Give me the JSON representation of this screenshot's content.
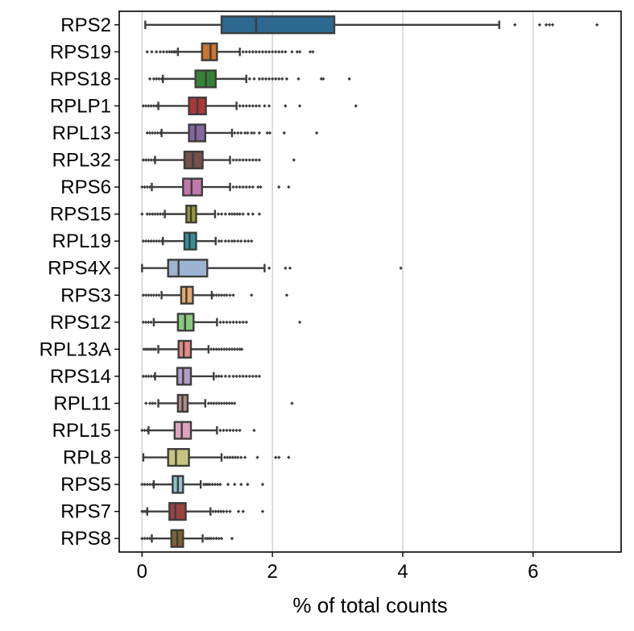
{
  "chart_data": {
    "type": "box",
    "orientation": "horizontal",
    "xlabel": "% of total counts",
    "ylabel": "",
    "xlim": [
      -0.35,
      7.35
    ],
    "xticks": [
      0,
      2,
      4,
      6
    ],
    "grid": "vertical",
    "categories": [
      "RPS2",
      "RPS19",
      "RPS18",
      "RPLP1",
      "RPL13",
      "RPL32",
      "RPS6",
      "RPS15",
      "RPL19",
      "RPS4X",
      "RPS3",
      "RPS12",
      "RPL13A",
      "RPS14",
      "RPL11",
      "RPL15",
      "RPL8",
      "RPS5",
      "RPS7",
      "RPS8"
    ],
    "boxes": [
      {
        "gene": "RPS2",
        "color": "#3274a1",
        "whislo": 0.05,
        "q1": 1.22,
        "med": 1.75,
        "q3": 2.95,
        "whishi": 5.48,
        "fliers": [
          5.72,
          6.1,
          6.2,
          6.25,
          6.3,
          6.98
        ]
      },
      {
        "gene": "RPS19",
        "color": "#e1812c",
        "whislo": 0.55,
        "q1": 0.92,
        "med": 1.05,
        "q3": 1.15,
        "whishi": 1.5,
        "fliers": [
          0.08,
          0.15,
          0.22,
          0.28,
          0.33,
          0.38,
          0.42,
          0.45,
          0.48,
          0.5,
          0.52,
          1.55,
          1.6,
          1.65,
          1.7,
          1.75,
          1.8,
          1.85,
          1.9,
          1.95,
          2.0,
          2.05,
          2.1,
          2.15,
          2.2,
          2.3,
          2.38,
          2.42,
          2.58,
          2.62
        ]
      },
      {
        "gene": "RPS18",
        "color": "#3a923a",
        "whislo": 0.32,
        "q1": 0.82,
        "med": 0.98,
        "q3": 1.13,
        "whishi": 1.6,
        "fliers": [
          0.12,
          0.18,
          0.22,
          0.26,
          0.3,
          1.65,
          1.72,
          1.8,
          1.85,
          1.9,
          1.95,
          2.0,
          2.05,
          2.1,
          2.15,
          2.22,
          2.4,
          2.75,
          2.78,
          3.18
        ]
      },
      {
        "gene": "RPLP1",
        "color": "#c03d3e",
        "whislo": 0.25,
        "q1": 0.72,
        "med": 0.85,
        "q3": 0.98,
        "whishi": 1.45,
        "fliers": [
          0.02,
          0.06,
          0.1,
          0.14,
          0.18,
          0.22,
          1.5,
          1.55,
          1.6,
          1.65,
          1.7,
          1.75,
          1.8,
          1.88,
          1.95,
          2.2,
          2.42,
          3.28
        ]
      },
      {
        "gene": "RPL13",
        "color": "#9372b2",
        "whislo": 0.3,
        "q1": 0.72,
        "med": 0.82,
        "q3": 0.97,
        "whishi": 1.38,
        "fliers": [
          0.08,
          0.12,
          0.16,
          0.2,
          0.24,
          0.28,
          1.42,
          1.47,
          1.52,
          1.58,
          1.62,
          1.68,
          1.72,
          1.8,
          1.92,
          1.96,
          2.18,
          2.68
        ]
      },
      {
        "gene": "RPL32",
        "color": "#845b53",
        "whislo": 0.2,
        "q1": 0.65,
        "med": 0.78,
        "q3": 0.93,
        "whishi": 1.35,
        "fliers": [
          0.02,
          0.06,
          0.1,
          0.14,
          0.18,
          1.4,
          1.45,
          1.5,
          1.55,
          1.6,
          1.65,
          1.7,
          1.75,
          1.8,
          2.33
        ]
      },
      {
        "gene": "RPS6",
        "color": "#d684bd",
        "whislo": 0.15,
        "q1": 0.63,
        "med": 0.76,
        "q3": 0.92,
        "whishi": 1.35,
        "fliers": [
          0.0,
          0.04,
          0.08,
          0.12,
          1.4,
          1.45,
          1.5,
          1.55,
          1.6,
          1.65,
          1.7,
          1.78,
          1.82,
          2.1,
          2.25
        ]
      },
      {
        "gene": "RPS15",
        "color": "#a9aa35",
        "whislo": 0.35,
        "q1": 0.68,
        "med": 0.75,
        "q3": 0.83,
        "whishi": 1.12,
        "fliers": [
          0.0,
          0.08,
          0.12,
          0.16,
          0.2,
          0.24,
          0.28,
          0.32,
          1.17,
          1.22,
          1.28,
          1.34,
          1.38,
          1.42,
          1.46,
          1.5,
          1.55,
          1.63,
          1.7,
          1.8
        ]
      },
      {
        "gene": "RPL19",
        "color": "#3a9fad",
        "whislo": 0.32,
        "q1": 0.65,
        "med": 0.73,
        "q3": 0.83,
        "whishi": 1.13,
        "fliers": [
          0.02,
          0.06,
          0.1,
          0.14,
          0.18,
          0.22,
          0.26,
          0.3,
          1.18,
          1.22,
          1.28,
          1.33,
          1.38,
          1.42,
          1.47,
          1.52,
          1.58,
          1.63,
          1.68
        ]
      },
      {
        "gene": "RPS4X",
        "color": "#aec7e8",
        "whislo": 0.0,
        "q1": 0.4,
        "med": 0.56,
        "q3": 1.0,
        "whishi": 1.88,
        "fliers": [
          1.95,
          2.2,
          2.27,
          3.97
        ]
      },
      {
        "gene": "RPS3",
        "color": "#ffbb78",
        "whislo": 0.3,
        "q1": 0.6,
        "med": 0.68,
        "q3": 0.78,
        "whishi": 1.07,
        "fliers": [
          0.02,
          0.06,
          0.1,
          0.14,
          0.18,
          0.22,
          0.26,
          1.1,
          1.14,
          1.18,
          1.22,
          1.26,
          1.3,
          1.35,
          1.4,
          1.68,
          2.22
        ]
      },
      {
        "gene": "RPS12",
        "color": "#98df8a",
        "whislo": 0.18,
        "q1": 0.55,
        "med": 0.66,
        "q3": 0.79,
        "whishi": 1.15,
        "fliers": [
          0.02,
          0.06,
          0.1,
          0.14,
          1.2,
          1.25,
          1.3,
          1.35,
          1.4,
          1.45,
          1.5,
          1.55,
          1.6,
          2.42
        ]
      },
      {
        "gene": "RPL13A",
        "color": "#ff9896",
        "whislo": 0.25,
        "q1": 0.56,
        "med": 0.64,
        "q3": 0.75,
        "whishi": 1.02,
        "fliers": [
          0.03,
          0.06,
          0.09,
          0.12,
          0.15,
          0.18,
          0.21,
          1.06,
          1.1,
          1.14,
          1.18,
          1.22,
          1.26,
          1.3,
          1.34,
          1.38,
          1.42,
          1.46,
          1.5,
          1.53
        ]
      },
      {
        "gene": "RPS14",
        "color": "#c5b0d5",
        "whislo": 0.2,
        "q1": 0.54,
        "med": 0.63,
        "q3": 0.75,
        "whishi": 1.1,
        "fliers": [
          0.02,
          0.06,
          0.1,
          0.14,
          0.18,
          1.14,
          1.18,
          1.22,
          1.28,
          1.34,
          1.4,
          1.45,
          1.5,
          1.55,
          1.6,
          1.65,
          1.7,
          1.75,
          1.8
        ]
      },
      {
        "gene": "RPL11",
        "color": "#c49c94",
        "whislo": 0.25,
        "q1": 0.55,
        "med": 0.62,
        "q3": 0.7,
        "whishi": 0.97,
        "fliers": [
          0.06,
          0.12,
          0.16,
          0.2,
          1.02,
          1.06,
          1.1,
          1.14,
          1.18,
          1.22,
          1.26,
          1.3,
          1.34,
          1.38,
          1.42,
          2.3
        ]
      },
      {
        "gene": "RPL15",
        "color": "#f7b6d2",
        "whislo": 0.1,
        "q1": 0.5,
        "med": 0.61,
        "q3": 0.75,
        "whishi": 1.15,
        "fliers": [
          0.0,
          0.04,
          0.08,
          1.2,
          1.25,
          1.3,
          1.35,
          1.4,
          1.45,
          1.5,
          1.72
        ]
      },
      {
        "gene": "RPL8",
        "color": "#dbdb8d",
        "whislo": 0.02,
        "q1": 0.4,
        "med": 0.52,
        "q3": 0.72,
        "whishi": 1.22,
        "fliers": [
          1.27,
          1.31,
          1.35,
          1.39,
          1.43,
          1.47,
          1.52,
          1.58,
          1.77,
          2.05,
          2.1,
          2.25
        ]
      },
      {
        "gene": "RPS5",
        "color": "#9edae5",
        "whislo": 0.18,
        "q1": 0.47,
        "med": 0.55,
        "q3": 0.63,
        "whishi": 0.9,
        "fliers": [
          0.0,
          0.04,
          0.08,
          0.12,
          0.16,
          0.95,
          0.98,
          1.01,
          1.04,
          1.08,
          1.12,
          1.16,
          1.2,
          1.32,
          1.42,
          1.52,
          1.62,
          1.85
        ]
      },
      {
        "gene": "RPS7",
        "color": "#ad494a",
        "whislo": 0.08,
        "q1": 0.42,
        "med": 0.51,
        "q3": 0.67,
        "whishi": 1.05,
        "fliers": [
          0.0,
          0.03,
          0.06,
          1.09,
          1.13,
          1.17,
          1.21,
          1.25,
          1.3,
          1.35,
          1.48,
          1.55,
          1.85
        ]
      },
      {
        "gene": "RPS8",
        "color": "#8c6d31",
        "whislo": 0.15,
        "q1": 0.45,
        "med": 0.54,
        "q3": 0.63,
        "whishi": 0.93,
        "fliers": [
          0.0,
          0.04,
          0.08,
          0.12,
          0.97,
          1.0,
          1.03,
          1.06,
          1.1,
          1.14,
          1.18,
          1.22,
          1.38
        ]
      }
    ]
  }
}
